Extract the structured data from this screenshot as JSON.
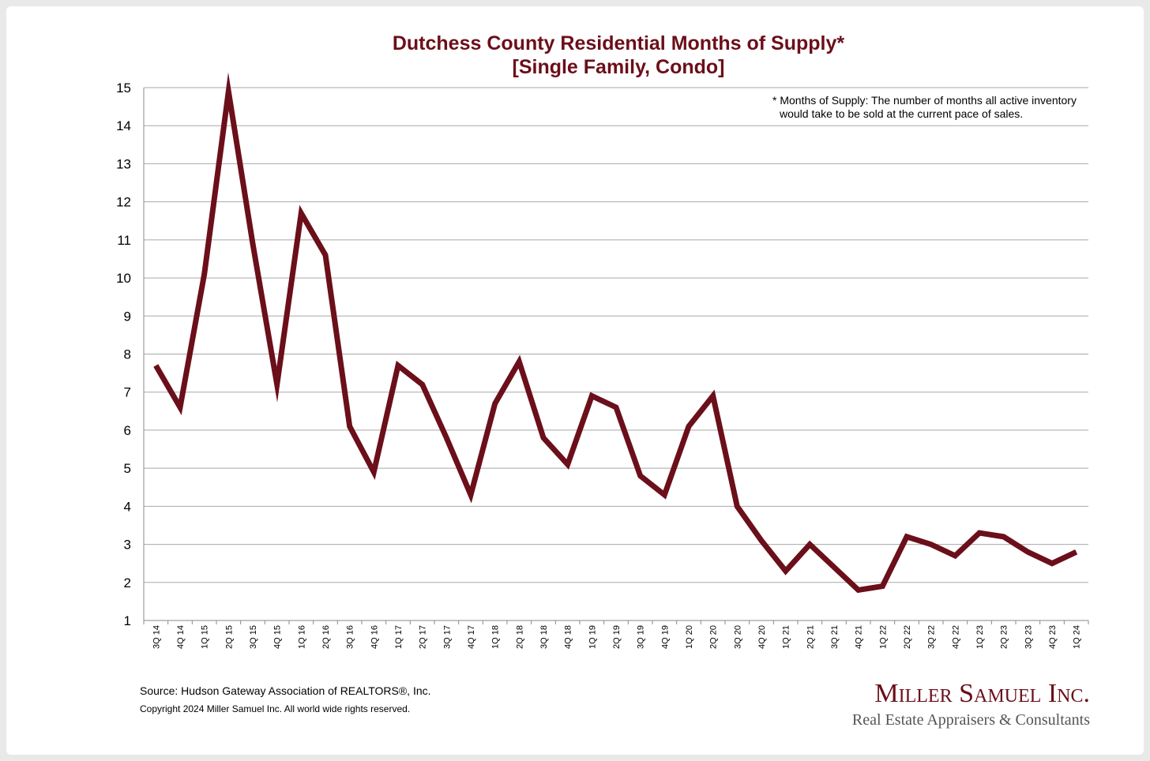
{
  "chart_data": {
    "type": "line",
    "title": "Dutchess County Residential Months of Supply*",
    "subtitle": "[Single Family, Condo]",
    "xlabel": "",
    "ylabel": "",
    "ylim": [
      1,
      15
    ],
    "yticks": [
      1,
      2,
      3,
      4,
      5,
      6,
      7,
      8,
      9,
      10,
      11,
      12,
      13,
      14,
      15
    ],
    "grid": true,
    "line_color": "#6b0f1a",
    "annotation": [
      "* Months of Supply: The number of months all active inventory",
      "would take to be sold at the current pace of sales."
    ],
    "categories": [
      "3Q 14",
      "4Q 14",
      "1Q 15",
      "2Q 15",
      "3Q 15",
      "4Q 15",
      "1Q 16",
      "2Q 16",
      "3Q 16",
      "4Q 16",
      "1Q 17",
      "2Q 17",
      "3Q 17",
      "4Q 17",
      "1Q 18",
      "2Q 18",
      "3Q 18",
      "4Q 18",
      "1Q 19",
      "2Q 19",
      "3Q 19",
      "4Q 19",
      "1Q 20",
      "2Q 20",
      "3Q 20",
      "4Q 20",
      "1Q 21",
      "2Q 21",
      "3Q 21",
      "4Q 21",
      "1Q 22",
      "2Q 22",
      "3Q 22",
      "4Q 22",
      "1Q 23",
      "2Q 23",
      "3Q 23",
      "4Q 23",
      "1Q 24"
    ],
    "series": [
      {
        "name": "Months of Supply",
        "values": [
          7.7,
          6.6,
          10.1,
          14.9,
          10.9,
          7.2,
          11.7,
          10.6,
          6.1,
          4.9,
          7.7,
          7.2,
          5.8,
          4.3,
          6.7,
          7.8,
          5.8,
          5.1,
          6.9,
          6.6,
          4.8,
          4.3,
          6.1,
          6.9,
          4.0,
          3.1,
          2.3,
          3.0,
          2.4,
          1.8,
          1.9,
          3.2,
          3.0,
          2.7,
          3.3,
          3.2,
          2.8,
          2.5,
          2.8
        ]
      }
    ]
  },
  "footer": {
    "source": "Source: Hudson Gateway Association of REALTORS®, Inc.",
    "copyright": "Copyright 2024 Miller Samuel Inc.  All world wide rights reserved."
  },
  "logo": {
    "company": "Miller Samuel Inc.",
    "tagline": "Real Estate Appraisers & Consultants"
  }
}
